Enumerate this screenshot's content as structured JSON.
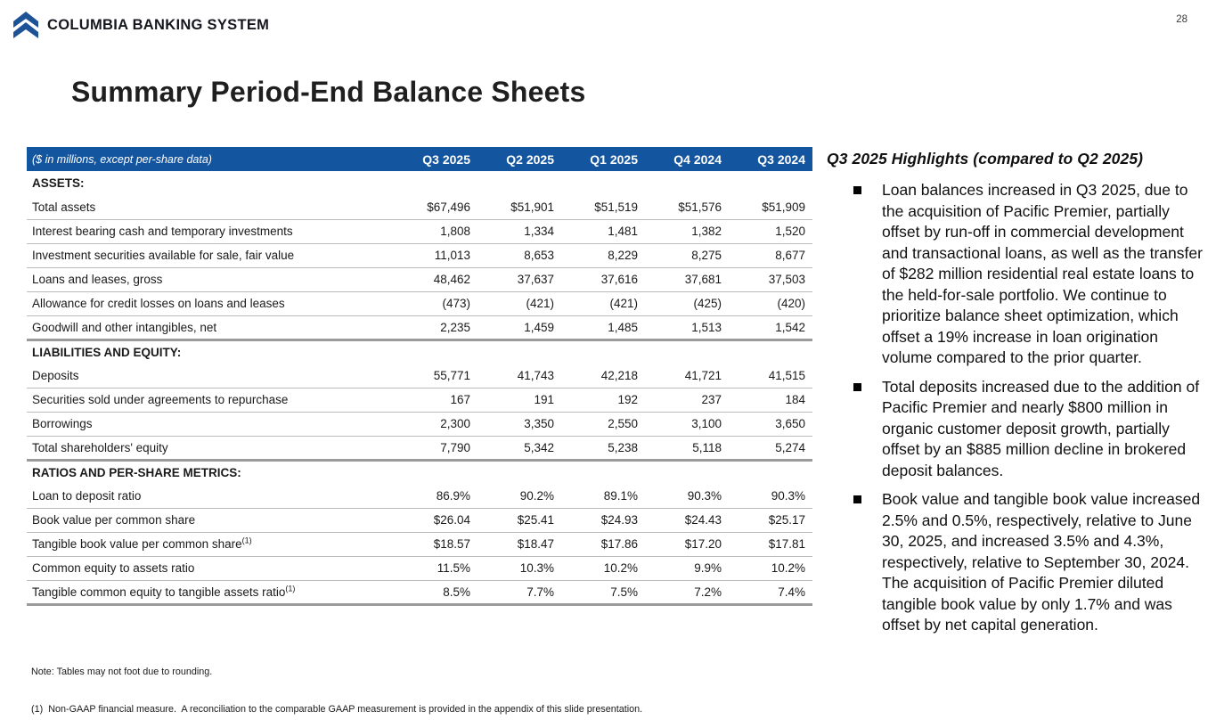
{
  "page": {
    "number": "28"
  },
  "logo": {
    "text": "COLUMBIA BANKING SYSTEM",
    "chevron_blue": "#1d5296"
  },
  "title": "Summary Period-End Balance Sheets",
  "colors": {
    "header_blue": "#14559f",
    "thin_rule": "#bcbcbc",
    "thick_rule": "#9b9b9b"
  },
  "table": {
    "caption": "($ in millions, except per-share data)",
    "columns": [
      "Q3 2025",
      "Q2 2025",
      "Q1 2025",
      "Q4 2024",
      "Q3 2024"
    ],
    "rows": [
      {
        "type": "section",
        "label": "ASSETS:"
      },
      {
        "type": "data",
        "label": "Total assets",
        "values": [
          "$67,496",
          "$51,901",
          "$51,519",
          "$51,576",
          "$51,909"
        ]
      },
      {
        "type": "data",
        "label": "Interest bearing cash and temporary investments",
        "values": [
          "1,808",
          "1,334",
          "1,481",
          "1,382",
          "1,520"
        ]
      },
      {
        "type": "data",
        "label": "Investment securities available for sale, fair value",
        "values": [
          "11,013",
          "8,653",
          "8,229",
          "8,275",
          "8,677"
        ]
      },
      {
        "type": "data",
        "label": "Loans and leases, gross",
        "values": [
          "48,462",
          "37,637",
          "37,616",
          "37,681",
          "37,503"
        ]
      },
      {
        "type": "data",
        "label": "Allowance for credit losses on loans and leases",
        "values": [
          "(473)",
          "(421)",
          "(421)",
          "(425)",
          "(420)"
        ]
      },
      {
        "type": "data",
        "label": "Goodwill and other intangibles, net",
        "values": [
          "2,235",
          "1,459",
          "1,485",
          "1,513",
          "1,542"
        ],
        "thick_end": true
      },
      {
        "type": "section",
        "label": "LIABILITIES AND EQUITY:"
      },
      {
        "type": "data",
        "label": "Deposits",
        "values": [
          "55,771",
          "41,743",
          "42,218",
          "41,721",
          "41,515"
        ]
      },
      {
        "type": "data",
        "label": "Securities sold under agreements to repurchase",
        "values": [
          "167",
          "191",
          "192",
          "237",
          "184"
        ]
      },
      {
        "type": "data",
        "label": "Borrowings",
        "values": [
          "2,300",
          "3,350",
          "2,550",
          "3,100",
          "3,650"
        ]
      },
      {
        "type": "data",
        "label": "Total shareholders' equity",
        "values": [
          "7,790",
          "5,342",
          "5,238",
          "5,118",
          "5,274"
        ],
        "thick_end": true
      },
      {
        "type": "section",
        "label": "RATIOS AND PER-SHARE METRICS:"
      },
      {
        "type": "data",
        "label": "Loan to deposit ratio",
        "values": [
          "86.9%",
          "90.2%",
          "89.1%",
          "90.3%",
          "90.3%"
        ]
      },
      {
        "type": "data",
        "label": "Book value per common share",
        "values": [
          "$26.04",
          "$25.41",
          "$24.93",
          "$24.43",
          "$25.17"
        ]
      },
      {
        "type": "data",
        "label": "Tangible book value per common share",
        "sup": "(1)",
        "values": [
          "$18.57",
          "$18.47",
          "$17.86",
          "$17.20",
          "$17.81"
        ]
      },
      {
        "type": "data",
        "label": "Common equity to assets ratio",
        "values": [
          "11.5%",
          "10.3%",
          "10.2%",
          "9.9%",
          "10.2%"
        ]
      },
      {
        "type": "data",
        "label": "Tangible common equity to tangible assets ratio",
        "sup": "(1)",
        "values": [
          "8.5%",
          "7.7%",
          "7.5%",
          "7.2%",
          "7.4%"
        ],
        "thick_end": true
      }
    ]
  },
  "footnotes": {
    "note": "Note: Tables may not foot due to rounding.",
    "item1": "(1)  Non-GAAP financial measure.  A reconciliation to the comparable GAAP measurement is provided in the appendix of this slide presentation."
  },
  "highlights": {
    "title": "Q3 2025 Highlights (compared to Q2 2025)",
    "bullets": [
      "Loan balances increased in Q3 2025, due to the acquisition of Pacific Premier, partially offset by run-off in commercial development and transactional loans, as well as the transfer of $282 million residential real estate loans to the held-for-sale portfolio. We continue to prioritize balance sheet optimization, which offset a 19% increase in loan origination volume compared to the prior quarter.",
      "Total deposits increased due to the addition of Pacific Premier and nearly $800 million in organic customer deposit growth, partially offset by an $885 million decline in brokered deposit balances.",
      "Book value and tangible book value increased 2.5% and 0.5%, respectively, relative to June 30, 2025, and increased 3.5% and 4.3%, respectively, relative to September 30, 2024. The acquisition of Pacific Premier diluted tangible book value by only 1.7% and was offset by net capital generation."
    ]
  }
}
